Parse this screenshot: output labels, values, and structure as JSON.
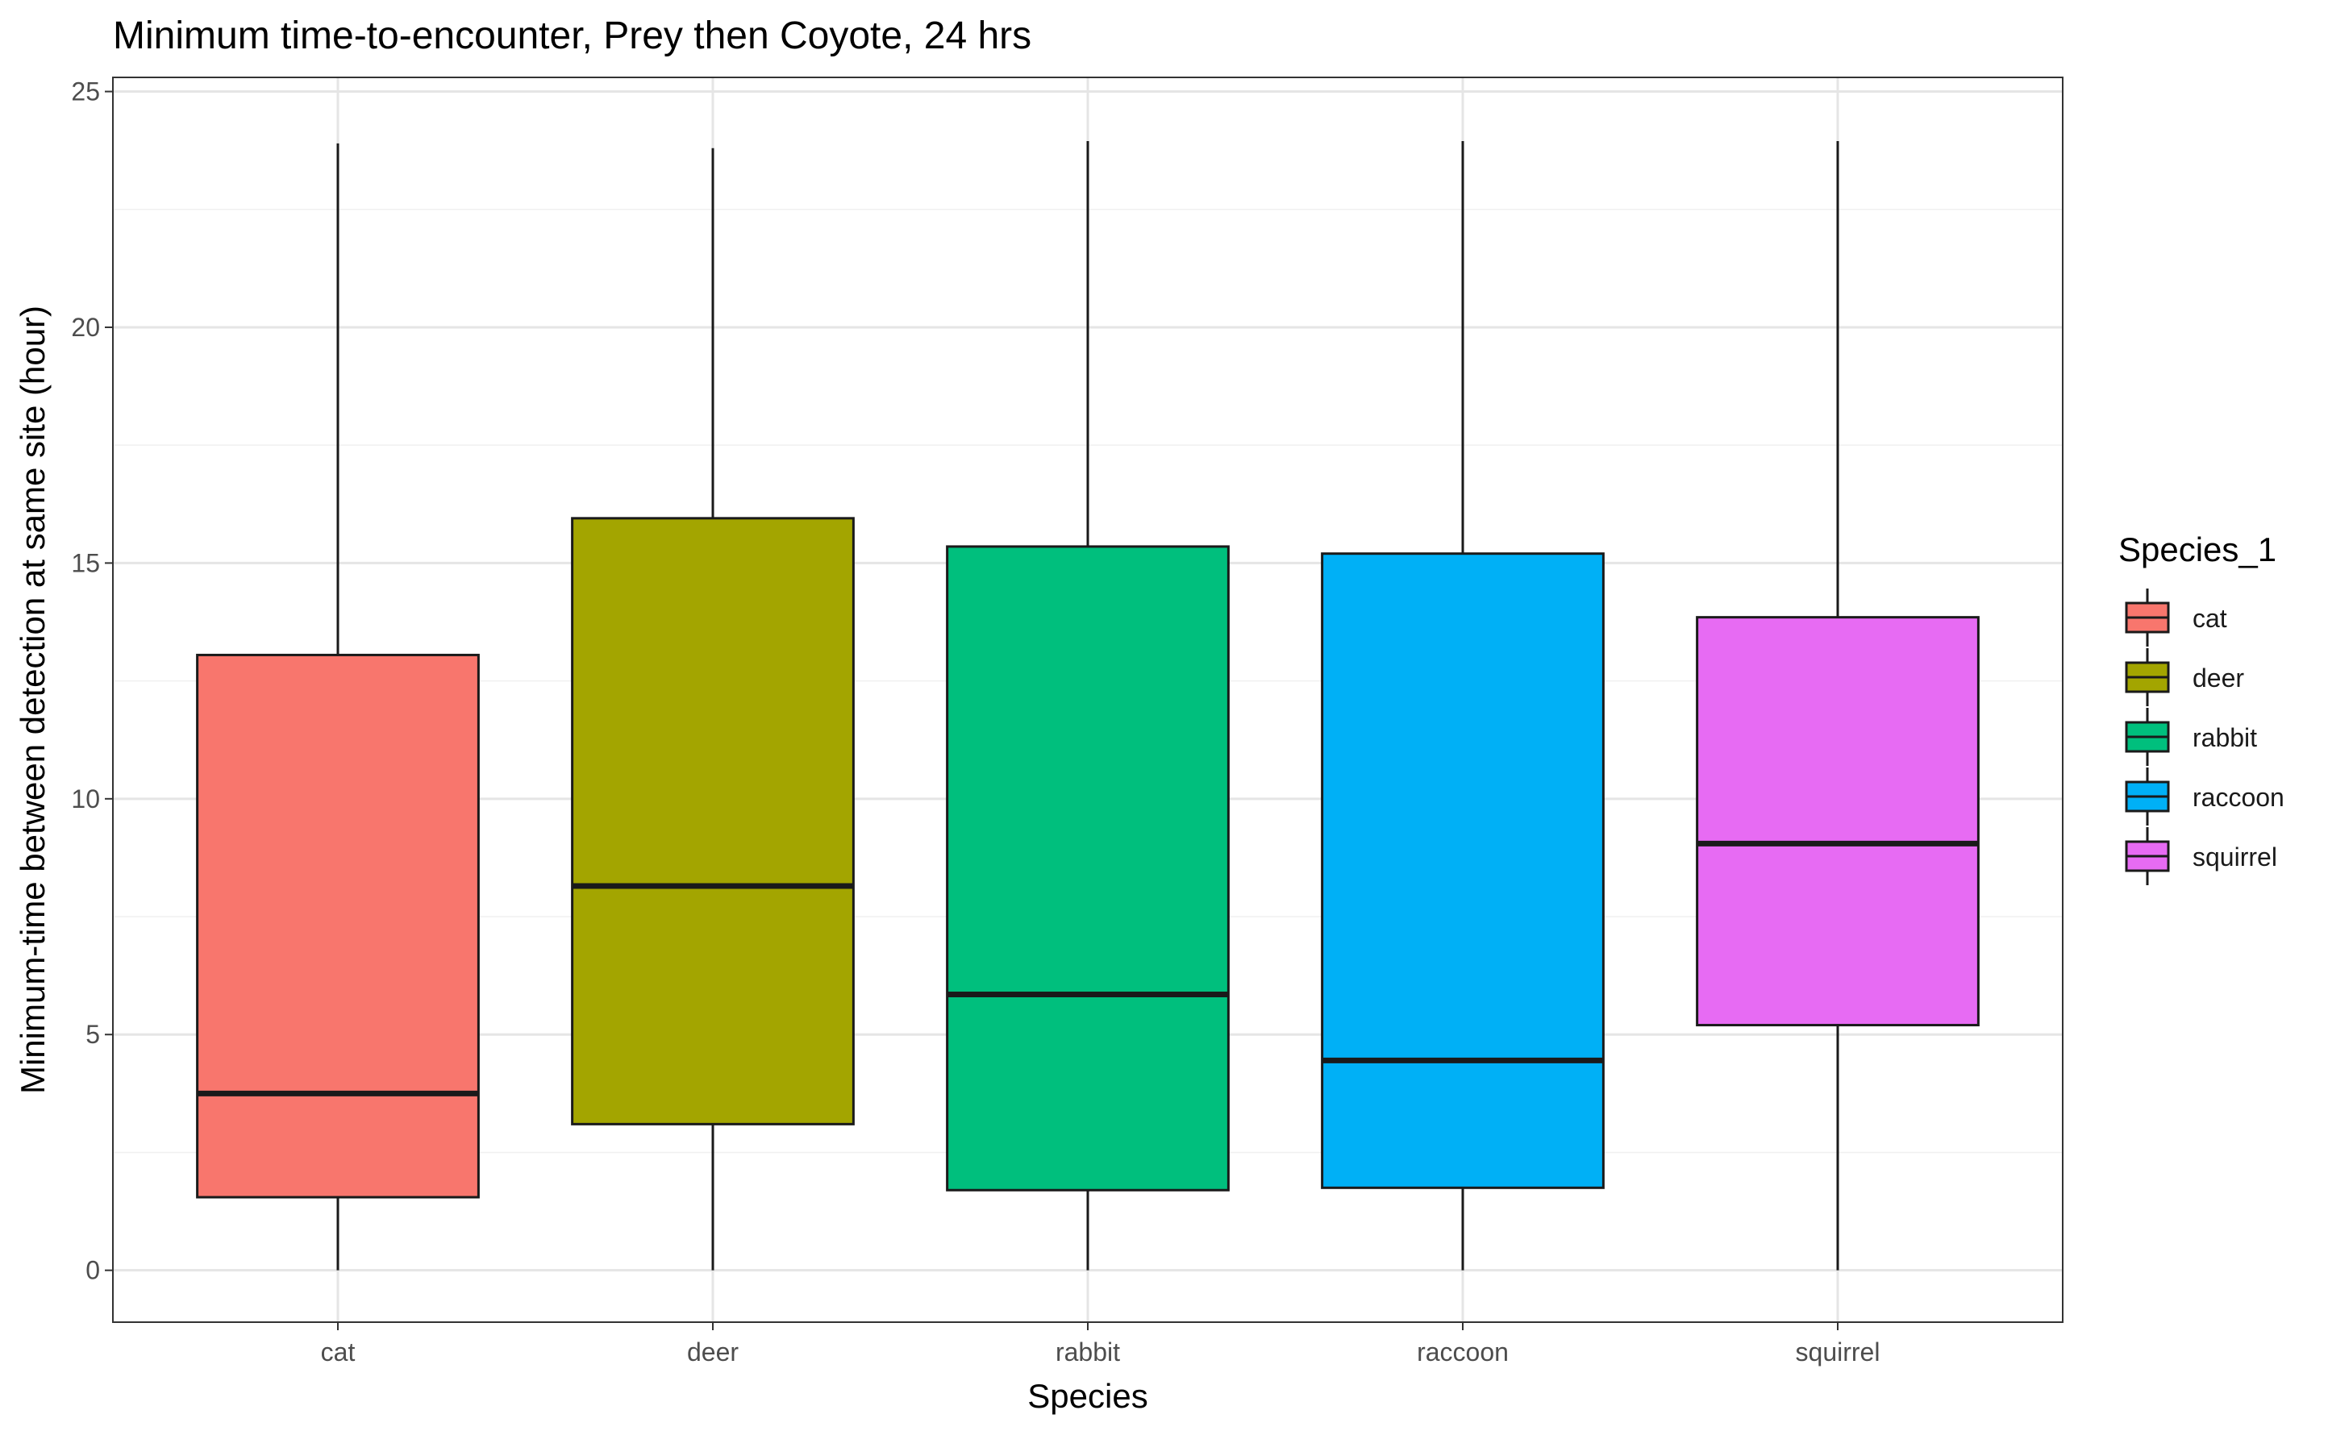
{
  "chart_data": {
    "type": "boxplot",
    "title": "Minimum time-to-encounter, Prey then Coyote, 24 hrs",
    "xlabel": "Species",
    "ylabel": "Minimum-time between detection at same site (hour)",
    "ylim": [
      -1.1,
      25.3
    ],
    "yticks": [
      0,
      5,
      10,
      15,
      20,
      25
    ],
    "ytick_labels": [
      "0",
      "5",
      "10",
      "15",
      "20",
      "25"
    ],
    "categories": [
      "cat",
      "deer",
      "rabbit",
      "raccoon",
      "squirrel"
    ],
    "boxes": [
      {
        "category": "cat",
        "min": 0,
        "q1": 1.55,
        "median": 3.75,
        "q3": 13.05,
        "max": 23.9
      },
      {
        "category": "deer",
        "min": 0,
        "q1": 3.1,
        "median": 8.15,
        "q3": 15.95,
        "max": 23.8
      },
      {
        "category": "rabbit",
        "min": 0,
        "q1": 1.7,
        "median": 5.85,
        "q3": 15.35,
        "max": 23.95
      },
      {
        "category": "raccoon",
        "min": 0,
        "q1": 1.75,
        "median": 4.45,
        "q3": 15.2,
        "max": 23.95
      },
      {
        "category": "squirrel",
        "min": 0,
        "q1": 5.2,
        "median": 9.05,
        "q3": 13.85,
        "max": 23.95
      }
    ],
    "colors": {
      "cat": "#F8766D",
      "deer": "#A3A500",
      "rabbit": "#00BF7D",
      "raccoon": "#00B0F6",
      "squirrel": "#E76BF3"
    },
    "grid": true,
    "theme": "bw",
    "legend": {
      "title": "Species_1",
      "position": "right",
      "entries": [
        "cat",
        "deer",
        "rabbit",
        "raccoon",
        "squirrel"
      ]
    }
  }
}
